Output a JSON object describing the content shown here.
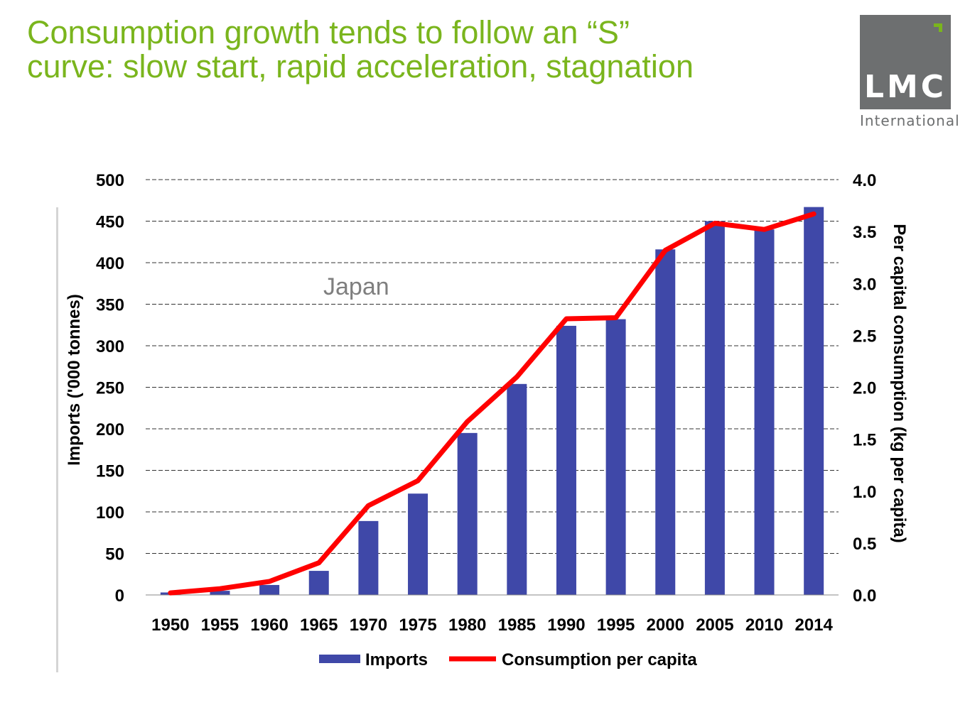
{
  "slide": {
    "title_line1": "Consumption growth tends to follow an “S”",
    "title_line2": "curve: slow start, rapid acceleration, stagnation"
  },
  "logo": {
    "text": "LMC",
    "subtext": "International",
    "colors": {
      "box": "#6d6f70",
      "accent": "#7ab51d"
    }
  },
  "chart_data": {
    "type": "bar",
    "categories": [
      "1950",
      "1955",
      "1960",
      "1965",
      "1970",
      "1975",
      "1980",
      "1985",
      "1990",
      "1995",
      "2000",
      "2005",
      "2010",
      "2014"
    ],
    "series": [
      {
        "name": "Imports",
        "type": "bar",
        "axis": "left",
        "color": "#3f48a8",
        "values": [
          3,
          5,
          12,
          29,
          89,
          122,
          195,
          254,
          324,
          332,
          416,
          450,
          440,
          467
        ]
      },
      {
        "name": "Consumption per capita",
        "type": "line",
        "axis": "right",
        "color": "#ff0000",
        "values": [
          0.02,
          0.06,
          0.13,
          0.31,
          0.86,
          1.1,
          1.67,
          2.1,
          2.66,
          2.67,
          3.32,
          3.58,
          3.52,
          3.67
        ]
      }
    ],
    "annotation": "Japan",
    "ylabel": "Imports ('000 tonnes)",
    "y2label": "Per capital consumption (kg per capita)",
    "ylim": [
      0,
      500
    ],
    "yticks": [
      "0",
      "50",
      "100",
      "150",
      "200",
      "250",
      "300",
      "350",
      "400",
      "450",
      "500"
    ],
    "y2lim": [
      0,
      4
    ],
    "y2ticks": [
      "0.0",
      "0.5",
      "1.0",
      "1.5",
      "2.0",
      "2.5",
      "3.0",
      "3.5",
      "4.0"
    ],
    "grid": true,
    "grid_style": "dashed",
    "legend_position": "bottom"
  }
}
